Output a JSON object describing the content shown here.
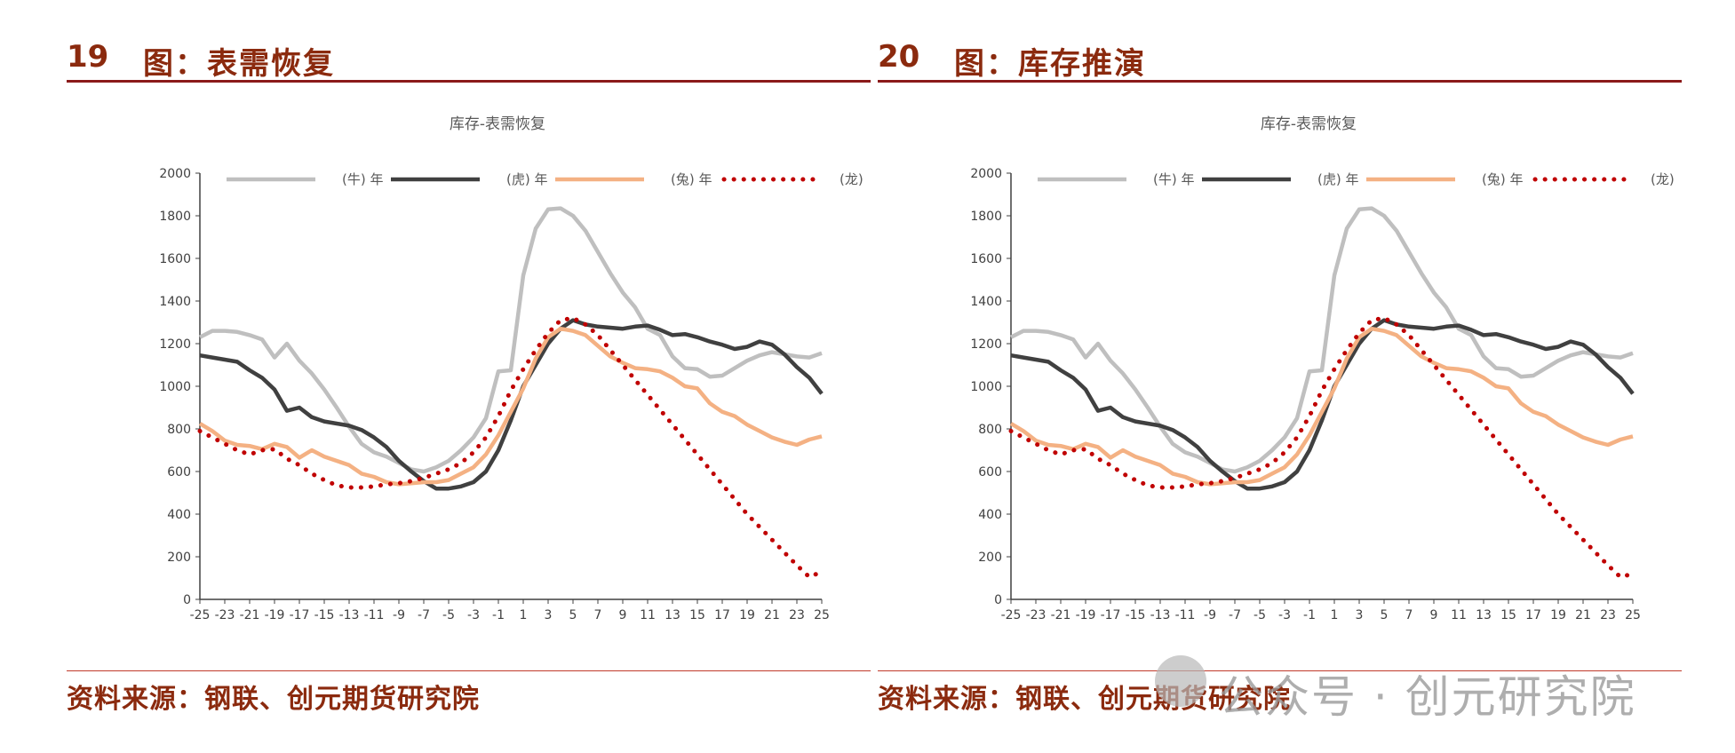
{
  "figures": [
    {
      "number": "19",
      "title": "图：表需恢复",
      "source": "资料来源：钢联、创元期货研究院",
      "chart_data": {
        "type": "line",
        "title": "库存-表需恢复",
        "xlabel": "",
        "ylabel": "",
        "ylim": [
          0,
          2000
        ],
        "yticks": [
          0,
          200,
          400,
          600,
          800,
          1000,
          1200,
          1400,
          1600,
          1800,
          2000
        ],
        "xlim": [
          -25,
          25
        ],
        "xticks": [
          -25,
          -23,
          -21,
          -19,
          -17,
          -15,
          -13,
          -11,
          -9,
          -7,
          -5,
          -3,
          -1,
          1,
          3,
          5,
          7,
          9,
          11,
          13,
          15,
          17,
          19,
          21,
          23,
          25
        ],
        "grid": false,
        "legend": "top",
        "x": [
          -25,
          -24,
          -23,
          -22,
          -21,
          -20,
          -19,
          -18,
          -17,
          -16,
          -15,
          -14,
          -13,
          -12,
          -11,
          -10,
          -9,
          -8,
          -7,
          -6,
          -5,
          -4,
          -3,
          -2,
          -1,
          0,
          1,
          2,
          3,
          4,
          5,
          6,
          7,
          8,
          9,
          10,
          11,
          12,
          13,
          14,
          15,
          16,
          17,
          18,
          19,
          20,
          21,
          22,
          23,
          24,
          25
        ],
        "series": [
          {
            "name": "(牛) 年",
            "color": "#bfbfbf",
            "style": "solid",
            "values": [
              1230,
              1260,
              1260,
              1255,
              1240,
              1220,
              1135,
              1200,
              1120,
              1060,
              985,
              900,
              810,
              730,
              690,
              670,
              640,
              610,
              600,
              620,
              650,
              700,
              760,
              850,
              1070,
              1075,
              1520,
              1740,
              1830,
              1835,
              1800,
              1730,
              1630,
              1530,
              1440,
              1370,
              1270,
              1240,
              1140,
              1085,
              1080,
              1045,
              1050,
              1085,
              1120,
              1145,
              1160,
              1150,
              1140,
              1135,
              1155
            ]
          },
          {
            "name": "(虎) 年",
            "color": "#404040",
            "style": "solid",
            "values": [
              1145,
              1135,
              1125,
              1115,
              1075,
              1040,
              985,
              885,
              900,
              855,
              835,
              825,
              815,
              795,
              760,
              715,
              650,
              600,
              555,
              520,
              520,
              530,
              550,
              600,
              700,
              840,
              1000,
              1100,
              1200,
              1270,
              1310,
              1290,
              1280,
              1275,
              1270,
              1280,
              1285,
              1265,
              1240,
              1245,
              1230,
              1210,
              1195,
              1175,
              1185,
              1210,
              1195,
              1150,
              1090,
              1040,
              965
            ]
          },
          {
            "name": "(兔) 年",
            "color": "#f4b183",
            "style": "solid",
            "values": [
              825,
              790,
              745,
              725,
              720,
              705,
              730,
              715,
              665,
              700,
              670,
              650,
              630,
              590,
              575,
              550,
              540,
              545,
              550,
              550,
              560,
              590,
              620,
              680,
              770,
              880,
              990,
              1130,
              1230,
              1270,
              1260,
              1240,
              1190,
              1140,
              1110,
              1085,
              1080,
              1070,
              1040,
              1000,
              990,
              920,
              880,
              860,
              820,
              790,
              760,
              740,
              725,
              750,
              765
            ]
          },
          {
            "name": "(龙) 年",
            "color": "#c00000",
            "style": "dotted",
            "values": [
              790,
              760,
              730,
              700,
              680,
              700,
              705,
              660,
              630,
              590,
              560,
              535,
              525,
              525,
              530,
              540,
              545,
              555,
              570,
              590,
              610,
              640,
              690,
              760,
              860,
              980,
              1080,
              1170,
              1250,
              1310,
              1320,
              1290,
              1240,
              1170,
              1100,
              1030,
              960,
              890,
              820,
              750,
              680,
              610,
              540,
              470,
              400,
              340,
              280,
              220,
              160,
              105,
              130
            ]
          }
        ]
      }
    },
    {
      "number": "20",
      "title": "图：库存推演",
      "source": "资料来源：钢联、创元期货研究院",
      "chart_data": {
        "type": "line",
        "title": "库存-表需恢复",
        "xlabel": "",
        "ylabel": "",
        "ylim": [
          0,
          2000
        ],
        "yticks": [
          0,
          200,
          400,
          600,
          800,
          1000,
          1200,
          1400,
          1600,
          1800,
          2000
        ],
        "xlim": [
          -25,
          25
        ],
        "xticks": [
          -25,
          -23,
          -21,
          -19,
          -17,
          -15,
          -13,
          -11,
          -9,
          -7,
          -5,
          -3,
          -1,
          1,
          3,
          5,
          7,
          9,
          11,
          13,
          15,
          17,
          19,
          21,
          23,
          25
        ],
        "grid": false,
        "legend": "top",
        "x": [
          -25,
          -24,
          -23,
          -22,
          -21,
          -20,
          -19,
          -18,
          -17,
          -16,
          -15,
          -14,
          -13,
          -12,
          -11,
          -10,
          -9,
          -8,
          -7,
          -6,
          -5,
          -4,
          -3,
          -2,
          -1,
          0,
          1,
          2,
          3,
          4,
          5,
          6,
          7,
          8,
          9,
          10,
          11,
          12,
          13,
          14,
          15,
          16,
          17,
          18,
          19,
          20,
          21,
          22,
          23,
          24,
          25
        ],
        "series": [
          {
            "name": "(牛) 年",
            "color": "#bfbfbf",
            "style": "solid",
            "values": [
              1230,
              1260,
              1260,
              1255,
              1240,
              1220,
              1135,
              1200,
              1120,
              1060,
              985,
              900,
              810,
              730,
              690,
              670,
              640,
              610,
              600,
              620,
              650,
              700,
              760,
              850,
              1070,
              1075,
              1520,
              1740,
              1830,
              1835,
              1800,
              1730,
              1630,
              1530,
              1440,
              1370,
              1270,
              1240,
              1140,
              1085,
              1080,
              1045,
              1050,
              1085,
              1120,
              1145,
              1160,
              1150,
              1140,
              1135,
              1155
            ]
          },
          {
            "name": "(虎) 年",
            "color": "#404040",
            "style": "solid",
            "values": [
              1145,
              1135,
              1125,
              1115,
              1075,
              1040,
              985,
              885,
              900,
              855,
              835,
              825,
              815,
              795,
              760,
              715,
              650,
              600,
              555,
              520,
              520,
              530,
              550,
              600,
              700,
              840,
              1000,
              1100,
              1200,
              1270,
              1310,
              1290,
              1280,
              1275,
              1270,
              1280,
              1285,
              1265,
              1240,
              1245,
              1230,
              1210,
              1195,
              1175,
              1185,
              1210,
              1195,
              1150,
              1090,
              1040,
              965
            ]
          },
          {
            "name": "(兔) 年",
            "color": "#f4b183",
            "style": "solid",
            "values": [
              825,
              790,
              745,
              725,
              720,
              705,
              730,
              715,
              665,
              700,
              670,
              650,
              630,
              590,
              575,
              550,
              540,
              545,
              550,
              550,
              560,
              590,
              620,
              680,
              770,
              880,
              990,
              1130,
              1230,
              1270,
              1260,
              1240,
              1190,
              1140,
              1110,
              1085,
              1080,
              1070,
              1040,
              1000,
              990,
              920,
              880,
              860,
              820,
              790,
              760,
              740,
              725,
              750,
              765
            ]
          },
          {
            "name": "(龙) 年",
            "color": "#c00000",
            "style": "dotted",
            "values": [
              790,
              760,
              730,
              700,
              680,
              700,
              705,
              660,
              630,
              590,
              560,
              535,
              525,
              525,
              530,
              540,
              545,
              555,
              570,
              590,
              610,
              640,
              690,
              760,
              860,
              980,
              1080,
              1170,
              1250,
              1310,
              1320,
              1290,
              1240,
              1170,
              1100,
              1030,
              960,
              890,
              820,
              750,
              680,
              610,
              540,
              470,
              400,
              340,
              280,
              220,
              160,
              105,
              120
            ]
          }
        ]
      }
    }
  ],
  "watermark": "公众号 · 创元研究院"
}
